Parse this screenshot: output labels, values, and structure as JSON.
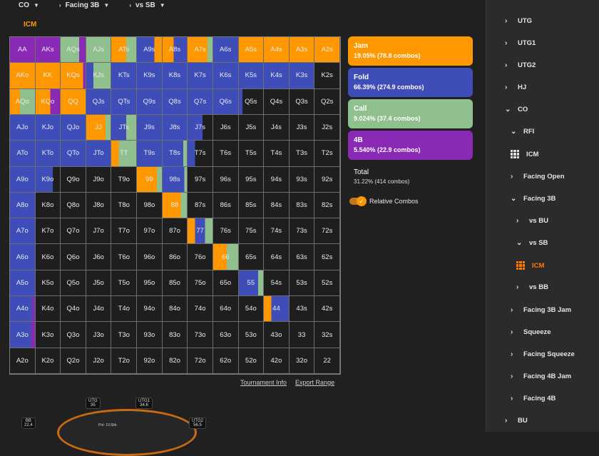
{
  "breadcrumb": [
    {
      "label": "CO"
    },
    {
      "label": "Facing 3B"
    },
    {
      "label": "vs SB"
    }
  ],
  "active_tab": "ICM",
  "colors": {
    "jam": "#ff9800",
    "fold": "#3f4db8",
    "call": "#8fc08e",
    "b4": "#8a2ab4",
    "empty": "#1e1e1e"
  },
  "grid": [
    [
      "AA",
      "AKs",
      "AQs",
      "AJs",
      "ATs",
      "A9s",
      "A8s",
      "A7s",
      "A6s",
      "A5s",
      "A4s",
      "A3s",
      "A2s"
    ],
    [
      "AKo",
      "KK",
      "KQs",
      "KJs",
      "KTs",
      "K9s",
      "K8s",
      "K7s",
      "K6s",
      "K5s",
      "K4s",
      "K3s",
      "K2s"
    ],
    [
      "AQo",
      "KQo",
      "QQ",
      "QJs",
      "QTs",
      "Q9s",
      "Q8s",
      "Q7s",
      "Q6s",
      "Q5s",
      "Q4s",
      "Q3s",
      "Q2s"
    ],
    [
      "AJo",
      "KJo",
      "QJo",
      "JJ",
      "JTs",
      "J9s",
      "J8s",
      "J7s",
      "J6s",
      "J5s",
      "J4s",
      "J3s",
      "J2s"
    ],
    [
      "ATo",
      "KTo",
      "QTo",
      "JTo",
      "TT",
      "T9s",
      "T8s",
      "T7s",
      "T6s",
      "T5s",
      "T4s",
      "T3s",
      "T2s"
    ],
    [
      "A9o",
      "K9o",
      "Q9o",
      "J9o",
      "T9o",
      "99",
      "98s",
      "97s",
      "96s",
      "95s",
      "94s",
      "93s",
      "92s"
    ],
    [
      "A8o",
      "K8o",
      "Q8o",
      "J8o",
      "T8o",
      "98o",
      "88",
      "87s",
      "86s",
      "85s",
      "84s",
      "83s",
      "82s"
    ],
    [
      "A7o",
      "K7o",
      "Q7o",
      "J7o",
      "T7o",
      "97o",
      "87o",
      "77",
      "76s",
      "75s",
      "74s",
      "73s",
      "72s"
    ],
    [
      "A6o",
      "K6o",
      "Q6o",
      "J6o",
      "T6o",
      "96o",
      "86o",
      "76o",
      "66",
      "65s",
      "64s",
      "63s",
      "62s"
    ],
    [
      "A5o",
      "K5o",
      "Q5o",
      "J5o",
      "T5o",
      "95o",
      "85o",
      "75o",
      "65o",
      "55",
      "54s",
      "53s",
      "52s"
    ],
    [
      "A4o",
      "K4o",
      "Q4o",
      "J4o",
      "T4o",
      "94o",
      "84o",
      "74o",
      "64o",
      "54o",
      "44",
      "43s",
      "42s"
    ],
    [
      "A3o",
      "K3o",
      "Q3o",
      "J3o",
      "T3o",
      "93o",
      "83o",
      "73o",
      "63o",
      "53o",
      "43o",
      "33",
      "32s"
    ],
    [
      "A2o",
      "K2o",
      "Q2o",
      "J2o",
      "T2o",
      "92o",
      "82o",
      "72o",
      "62o",
      "52o",
      "42o",
      "32o",
      "22"
    ]
  ],
  "cell_colors": [
    [
      [
        [
          "b4",
          1
        ]
      ],
      [
        [
          "b4",
          1
        ]
      ],
      [
        [
          "call",
          0.75
        ],
        [
          "b4",
          0.25
        ]
      ],
      [
        [
          "call",
          1
        ]
      ],
      [
        [
          "jam",
          0.6
        ],
        [
          "call",
          0.4
        ]
      ],
      [
        [
          "fold",
          0.7
        ],
        [
          "jam",
          0.3
        ]
      ],
      [
        [
          "jam",
          0.45
        ],
        [
          "fold",
          0.55
        ]
      ],
      [
        [
          "jam",
          0.8
        ],
        [
          "call",
          0.2
        ]
      ],
      [
        [
          "fold",
          1
        ]
      ],
      [
        [
          "jam",
          1
        ]
      ],
      [
        [
          "jam",
          1
        ]
      ],
      [
        [
          "jam",
          1
        ]
      ],
      [
        [
          "jam",
          1
        ]
      ]
    ],
    [
      [
        [
          "jam",
          1
        ]
      ],
      [
        [
          "jam",
          1
        ]
      ],
      [
        [
          "jam",
          0.9
        ],
        [
          "b4",
          0.1
        ]
      ],
      [
        [
          "fold",
          0.3
        ],
        [
          "call",
          0.7
        ]
      ],
      [
        [
          "fold",
          1
        ]
      ],
      [
        [
          "fold",
          1
        ]
      ],
      [
        [
          "fold",
          1
        ]
      ],
      [
        [
          "fold",
          1
        ]
      ],
      [
        [
          "fold",
          1
        ]
      ],
      [
        [
          "fold",
          1
        ]
      ],
      [
        [
          "fold",
          1
        ]
      ],
      [
        [
          "fold",
          1
        ]
      ],
      [
        [
          "empty",
          1
        ]
      ]
    ],
    [
      [
        [
          "jam",
          0.4
        ],
        [
          "call",
          0.6
        ]
      ],
      [
        [
          "jam",
          0.6
        ],
        [
          "b4",
          0.4
        ]
      ],
      [
        [
          "jam",
          1
        ]
      ],
      [
        [
          "fold",
          1
        ]
      ],
      [
        [
          "fold",
          1
        ]
      ],
      [
        [
          "fold",
          1
        ]
      ],
      [
        [
          "fold",
          1
        ]
      ],
      [
        [
          "fold",
          1
        ]
      ],
      [
        [
          "fold",
          1
        ]
      ],
      [
        [
          "fold",
          0.15
        ],
        [
          "empty",
          0.85
        ]
      ],
      [
        [
          "empty",
          1
        ]
      ],
      [
        [
          "empty",
          1
        ]
      ],
      [
        [
          "empty",
          1
        ]
      ]
    ],
    [
      [
        [
          "fold",
          1
        ]
      ],
      [
        [
          "fold",
          1
        ]
      ],
      [
        [
          "fold",
          1
        ]
      ],
      [
        [
          "jam",
          0.8
        ],
        [
          "call",
          0.2
        ]
      ],
      [
        [
          "fold",
          0.6
        ],
        [
          "call",
          0.4
        ]
      ],
      [
        [
          "fold",
          1
        ]
      ],
      [
        [
          "fold",
          1
        ]
      ],
      [
        [
          "fold",
          0.6
        ],
        [
          "empty",
          0.4
        ]
      ],
      [
        [
          "empty",
          1
        ]
      ],
      [
        [
          "empty",
          1
        ]
      ],
      [
        [
          "empty",
          1
        ]
      ],
      [
        [
          "empty",
          1
        ]
      ],
      [
        [
          "empty",
          1
        ]
      ]
    ],
    [
      [
        [
          "fold",
          1
        ]
      ],
      [
        [
          "fold",
          1
        ]
      ],
      [
        [
          "fold",
          1
        ]
      ],
      [
        [
          "fold",
          1
        ]
      ],
      [
        [
          "jam",
          0.3
        ],
        [
          "call",
          0.7
        ]
      ],
      [
        [
          "fold",
          1
        ]
      ],
      [
        [
          "fold",
          0.85
        ],
        [
          "call",
          0.15
        ]
      ],
      [
        [
          "fold",
          0.3
        ],
        [
          "empty",
          0.7
        ]
      ],
      [
        [
          "empty",
          1
        ]
      ],
      [
        [
          "empty",
          1
        ]
      ],
      [
        [
          "empty",
          1
        ]
      ],
      [
        [
          "empty",
          1
        ]
      ],
      [
        [
          "empty",
          1
        ]
      ]
    ],
    [
      [
        [
          "fold",
          1
        ]
      ],
      [
        [
          "fold",
          0.7
        ],
        [
          "empty",
          0.3
        ]
      ],
      [
        [
          "empty",
          1
        ]
      ],
      [
        [
          "empty",
          1
        ]
      ],
      [
        [
          "empty",
          1
        ]
      ],
      [
        [
          "jam",
          0.8
        ],
        [
          "call",
          0.2
        ]
      ],
      [
        [
          "fold",
          0.9
        ],
        [
          "call",
          0.1
        ]
      ],
      [
        [
          "empty",
          1
        ]
      ],
      [
        [
          "empty",
          1
        ]
      ],
      [
        [
          "empty",
          1
        ]
      ],
      [
        [
          "empty",
          1
        ]
      ],
      [
        [
          "empty",
          1
        ]
      ],
      [
        [
          "empty",
          1
        ]
      ]
    ],
    [
      [
        [
          "fold",
          1
        ]
      ],
      [
        [
          "empty",
          1
        ]
      ],
      [
        [
          "empty",
          1
        ]
      ],
      [
        [
          "empty",
          1
        ]
      ],
      [
        [
          "empty",
          1
        ]
      ],
      [
        [
          "empty",
          1
        ]
      ],
      [
        [
          "jam",
          0.75
        ],
        [
          "call",
          0.25
        ]
      ],
      [
        [
          "empty",
          1
        ]
      ],
      [
        [
          "empty",
          1
        ]
      ],
      [
        [
          "empty",
          1
        ]
      ],
      [
        [
          "empty",
          1
        ]
      ],
      [
        [
          "empty",
          1
        ]
      ],
      [
        [
          "empty",
          1
        ]
      ]
    ],
    [
      [
        [
          "fold",
          1
        ]
      ],
      [
        [
          "empty",
          1
        ]
      ],
      [
        [
          "empty",
          1
        ]
      ],
      [
        [
          "empty",
          1
        ]
      ],
      [
        [
          "empty",
          1
        ]
      ],
      [
        [
          "empty",
          1
        ]
      ],
      [
        [
          "empty",
          1
        ]
      ],
      [
        [
          "jam",
          0.3
        ],
        [
          "fold",
          0.4
        ],
        [
          "call",
          0.3
        ]
      ],
      [
        [
          "empty",
          1
        ]
      ],
      [
        [
          "empty",
          1
        ]
      ],
      [
        [
          "empty",
          1
        ]
      ],
      [
        [
          "empty",
          1
        ]
      ],
      [
        [
          "empty",
          1
        ]
      ]
    ],
    [
      [
        [
          "fold",
          1
        ]
      ],
      [
        [
          "empty",
          1
        ]
      ],
      [
        [
          "empty",
          1
        ]
      ],
      [
        [
          "empty",
          1
        ]
      ],
      [
        [
          "empty",
          1
        ]
      ],
      [
        [
          "empty",
          1
        ]
      ],
      [
        [
          "empty",
          1
        ]
      ],
      [
        [
          "empty",
          1
        ]
      ],
      [
        [
          "jam",
          0.55
        ],
        [
          "call",
          0.45
        ]
      ],
      [
        [
          "empty",
          1
        ]
      ],
      [
        [
          "empty",
          1
        ]
      ],
      [
        [
          "empty",
          1
        ]
      ],
      [
        [
          "empty",
          1
        ]
      ]
    ],
    [
      [
        [
          "fold",
          1
        ]
      ],
      [
        [
          "empty",
          1
        ]
      ],
      [
        [
          "empty",
          1
        ]
      ],
      [
        [
          "empty",
          1
        ]
      ],
      [
        [
          "empty",
          1
        ]
      ],
      [
        [
          "empty",
          1
        ]
      ],
      [
        [
          "empty",
          1
        ]
      ],
      [
        [
          "empty",
          1
        ]
      ],
      [
        [
          "empty",
          1
        ]
      ],
      [
        [
          "fold",
          0.8
        ],
        [
          "call",
          0.2
        ]
      ],
      [
        [
          "empty",
          1
        ]
      ],
      [
        [
          "empty",
          1
        ]
      ],
      [
        [
          "empty",
          1
        ]
      ]
    ],
    [
      [
        [
          "fold",
          0.9
        ],
        [
          "b4",
          0.1
        ]
      ],
      [
        [
          "empty",
          1
        ]
      ],
      [
        [
          "empty",
          1
        ]
      ],
      [
        [
          "empty",
          1
        ]
      ],
      [
        [
          "empty",
          1
        ]
      ],
      [
        [
          "empty",
          1
        ]
      ],
      [
        [
          "empty",
          1
        ]
      ],
      [
        [
          "empty",
          1
        ]
      ],
      [
        [
          "empty",
          1
        ]
      ],
      [
        [
          "empty",
          1
        ]
      ],
      [
        [
          "jam",
          0.3
        ],
        [
          "fold",
          0.7
        ]
      ],
      [
        [
          "empty",
          1
        ]
      ],
      [
        [
          "empty",
          1
        ]
      ]
    ],
    [
      [
        [
          "fold",
          0.85
        ],
        [
          "b4",
          0.15
        ]
      ],
      [
        [
          "empty",
          1
        ]
      ],
      [
        [
          "empty",
          1
        ]
      ],
      [
        [
          "empty",
          1
        ]
      ],
      [
        [
          "empty",
          1
        ]
      ],
      [
        [
          "empty",
          1
        ]
      ],
      [
        [
          "empty",
          1
        ]
      ],
      [
        [
          "empty",
          1
        ]
      ],
      [
        [
          "empty",
          1
        ]
      ],
      [
        [
          "empty",
          1
        ]
      ],
      [
        [
          "empty",
          1
        ]
      ],
      [
        [
          "empty",
          1
        ]
      ],
      [
        [
          "empty",
          1
        ]
      ]
    ],
    [
      [
        [
          "empty",
          1
        ]
      ],
      [
        [
          "empty",
          1
        ]
      ],
      [
        [
          "empty",
          1
        ]
      ],
      [
        [
          "empty",
          1
        ]
      ],
      [
        [
          "empty",
          1
        ]
      ],
      [
        [
          "empty",
          1
        ]
      ],
      [
        [
          "empty",
          1
        ]
      ],
      [
        [
          "empty",
          1
        ]
      ],
      [
        [
          "empty",
          1
        ]
      ],
      [
        [
          "empty",
          1
        ]
      ],
      [
        [
          "empty",
          1
        ]
      ],
      [
        [
          "empty",
          1
        ]
      ],
      [
        [
          "empty",
          1
        ]
      ]
    ]
  ],
  "legend": [
    {
      "key": "jam",
      "title": "Jam",
      "stats": "19.05% (78.8 combos)"
    },
    {
      "key": "fold",
      "title": "Fold",
      "stats": "66.39% (274.9 combos)"
    },
    {
      "key": "call",
      "title": "Call",
      "stats": "9.024% (37.4 combos)"
    },
    {
      "key": "b4",
      "title": "4B",
      "stats": "5.540% (22.9 combos)"
    }
  ],
  "total": {
    "title": "Total",
    "stats": "31.22% (414 combos)"
  },
  "toggle_label": "Relative Combos",
  "links": {
    "tournament_info": "Tournament Info",
    "export_range": "Export Range"
  },
  "tree": [
    {
      "label": "UTG",
      "chev": "›",
      "indent": 0,
      "top": 31
    },
    {
      "label": "UTG1",
      "chev": "›",
      "indent": 0,
      "top": 62
    },
    {
      "label": "UTG2",
      "chev": "›",
      "indent": 0,
      "top": 93
    },
    {
      "label": "HJ",
      "chev": "›",
      "indent": 0,
      "top": 124
    },
    {
      "label": "CO",
      "chev": "⌄",
      "indent": 0,
      "top": 155
    },
    {
      "label": "RFI",
      "chev": "⌄",
      "indent": 1,
      "top": 186
    },
    {
      "label": "ICM",
      "icon": "grid",
      "indent": 1,
      "top": 217
    },
    {
      "label": "Facing Open",
      "chev": "›",
      "indent": 1,
      "top": 249
    },
    {
      "label": "Facing 3B",
      "chev": "⌄",
      "indent": 1,
      "top": 280
    },
    {
      "label": "vs BU",
      "chev": "›",
      "indent": 2,
      "top": 311
    },
    {
      "label": "vs SB",
      "chev": "⌄",
      "indent": 2,
      "top": 342
    },
    {
      "label": "ICM",
      "icon": "grid-active",
      "indent": 2,
      "top": 373
    },
    {
      "label": "vs BB",
      "chev": "›",
      "indent": 2,
      "top": 404
    },
    {
      "label": "Facing 3B Jam",
      "chev": "›",
      "indent": 1,
      "top": 436
    },
    {
      "label": "Squeeze",
      "chev": "›",
      "indent": 1,
      "top": 467
    },
    {
      "label": "Facing Squeeze",
      "chev": "›",
      "indent": 1,
      "top": 498
    },
    {
      "label": "Facing 4B Jam",
      "chev": "›",
      "indent": 1,
      "top": 529
    },
    {
      "label": "Facing 4B",
      "chev": "›",
      "indent": 1,
      "top": 560
    },
    {
      "label": "BU",
      "chev": "›",
      "indent": 0,
      "top": 591
    }
  ],
  "table": {
    "seats": [
      {
        "name": "UTG",
        "stack": "35"
      },
      {
        "name": "UTG1",
        "stack": "34.6"
      },
      {
        "name": "BB",
        "stack": "22.4"
      },
      {
        "name": "UTG2",
        "stack": "56.5"
      }
    ],
    "pot": "Pot: 10.5bb"
  }
}
